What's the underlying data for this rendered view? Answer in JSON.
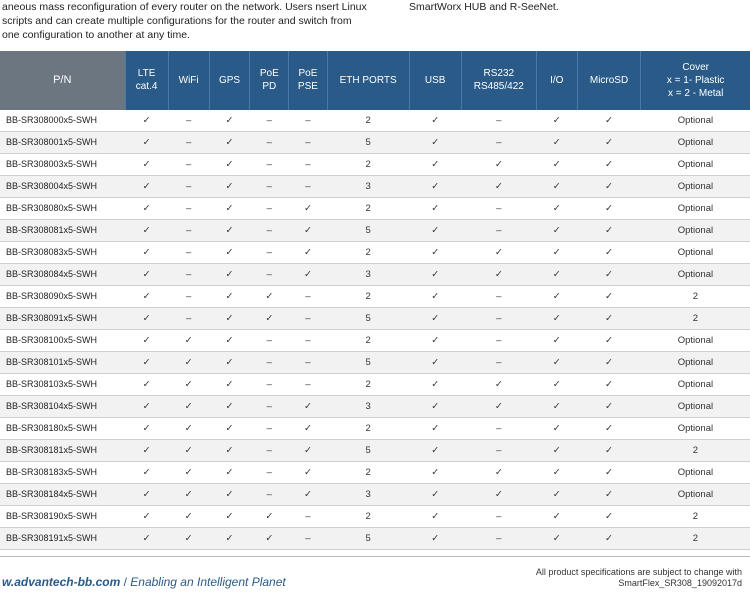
{
  "intro": {
    "left": "aneous mass reconfiguration of every router on the network. Users nsert Linux scripts and can create multiple configurations for the router and switch from one configuration to another at any time.",
    "right": "SmartWorx HUB and R-SeeNet."
  },
  "symbols": {
    "check": "✓",
    "dash": "–"
  },
  "columns": [
    {
      "key": "pn",
      "label": "P/N",
      "cls": "pn"
    },
    {
      "key": "lte",
      "label": "LTE\ncat.4",
      "cls": "col-lte"
    },
    {
      "key": "wifi",
      "label": "WiFi",
      "cls": "col-wifi"
    },
    {
      "key": "gps",
      "label": "GPS",
      "cls": "col-gps"
    },
    {
      "key": "pd",
      "label": "PoE\nPD",
      "cls": "col-pd"
    },
    {
      "key": "pse",
      "label": "PoE\nPSE",
      "cls": "col-pse"
    },
    {
      "key": "eth",
      "label": "ETH PORTS",
      "cls": "col-eth"
    },
    {
      "key": "usb",
      "label": "USB",
      "cls": "col-usb"
    },
    {
      "key": "rs",
      "label": "RS232\nRS485/422",
      "cls": "col-rs"
    },
    {
      "key": "io",
      "label": "I/O",
      "cls": "col-io"
    },
    {
      "key": "sd",
      "label": "MicroSD",
      "cls": "col-sd"
    },
    {
      "key": "cov",
      "label": "Cover\nx = 1- Plastic\nx = 2 - Metal",
      "cls": "col-cov"
    }
  ],
  "rows": [
    {
      "pn": "BB-SR308000x5-SWH",
      "lte": "c",
      "wifi": "d",
      "gps": "c",
      "pd": "d",
      "pse": "d",
      "eth": "2",
      "usb": "c",
      "rs": "d",
      "io": "c",
      "sd": "c",
      "cov": "Optional"
    },
    {
      "pn": "BB-SR308001x5-SWH",
      "lte": "c",
      "wifi": "d",
      "gps": "c",
      "pd": "d",
      "pse": "d",
      "eth": "5",
      "usb": "c",
      "rs": "d",
      "io": "c",
      "sd": "c",
      "cov": "Optional"
    },
    {
      "pn": "BB-SR308003x5-SWH",
      "lte": "c",
      "wifi": "d",
      "gps": "c",
      "pd": "d",
      "pse": "d",
      "eth": "2",
      "usb": "c",
      "rs": "c",
      "io": "c",
      "sd": "c",
      "cov": "Optional"
    },
    {
      "pn": "BB-SR308004x5-SWH",
      "lte": "c",
      "wifi": "d",
      "gps": "c",
      "pd": "d",
      "pse": "d",
      "eth": "3",
      "usb": "c",
      "rs": "c",
      "io": "c",
      "sd": "c",
      "cov": "Optional"
    },
    {
      "pn": "BB-SR308080x5-SWH",
      "lte": "c",
      "wifi": "d",
      "gps": "c",
      "pd": "d",
      "pse": "c",
      "eth": "2",
      "usb": "c",
      "rs": "d",
      "io": "c",
      "sd": "c",
      "cov": "Optional"
    },
    {
      "pn": "BB-SR308081x5-SWH",
      "lte": "c",
      "wifi": "d",
      "gps": "c",
      "pd": "d",
      "pse": "c",
      "eth": "5",
      "usb": "c",
      "rs": "d",
      "io": "c",
      "sd": "c",
      "cov": "Optional"
    },
    {
      "pn": "BB-SR308083x5-SWH",
      "lte": "c",
      "wifi": "d",
      "gps": "c",
      "pd": "d",
      "pse": "c",
      "eth": "2",
      "usb": "c",
      "rs": "c",
      "io": "c",
      "sd": "c",
      "cov": "Optional"
    },
    {
      "pn": "BB-SR308084x5-SWH",
      "lte": "c",
      "wifi": "d",
      "gps": "c",
      "pd": "d",
      "pse": "c",
      "eth": "3",
      "usb": "c",
      "rs": "c",
      "io": "c",
      "sd": "c",
      "cov": "Optional"
    },
    {
      "pn": "BB-SR308090x5-SWH",
      "lte": "c",
      "wifi": "d",
      "gps": "c",
      "pd": "c",
      "pse": "d",
      "eth": "2",
      "usb": "c",
      "rs": "d",
      "io": "c",
      "sd": "c",
      "cov": "2"
    },
    {
      "pn": "BB-SR308091x5-SWH",
      "lte": "c",
      "wifi": "d",
      "gps": "c",
      "pd": "c",
      "pse": "d",
      "eth": "5",
      "usb": "c",
      "rs": "d",
      "io": "c",
      "sd": "c",
      "cov": "2"
    },
    {
      "pn": "BB-SR308100x5-SWH",
      "lte": "c",
      "wifi": "c",
      "gps": "c",
      "pd": "d",
      "pse": "d",
      "eth": "2",
      "usb": "c",
      "rs": "d",
      "io": "c",
      "sd": "c",
      "cov": "Optional"
    },
    {
      "pn": "BB-SR308101x5-SWH",
      "lte": "c",
      "wifi": "c",
      "gps": "c",
      "pd": "d",
      "pse": "d",
      "eth": "5",
      "usb": "c",
      "rs": "d",
      "io": "c",
      "sd": "c",
      "cov": "Optional"
    },
    {
      "pn": "BB-SR308103x5-SWH",
      "lte": "c",
      "wifi": "c",
      "gps": "c",
      "pd": "d",
      "pse": "d",
      "eth": "2",
      "usb": "c",
      "rs": "c",
      "io": "c",
      "sd": "c",
      "cov": "Optional"
    },
    {
      "pn": "BB-SR308104x5-SWH",
      "lte": "c",
      "wifi": "c",
      "gps": "c",
      "pd": "d",
      "pse": "c",
      "eth": "3",
      "usb": "c",
      "rs": "c",
      "io": "c",
      "sd": "c",
      "cov": "Optional"
    },
    {
      "pn": "BB-SR308180x5-SWH",
      "lte": "c",
      "wifi": "c",
      "gps": "c",
      "pd": "d",
      "pse": "c",
      "eth": "2",
      "usb": "c",
      "rs": "d",
      "io": "c",
      "sd": "c",
      "cov": "Optional"
    },
    {
      "pn": "BB-SR308181x5-SWH",
      "lte": "c",
      "wifi": "c",
      "gps": "c",
      "pd": "d",
      "pse": "c",
      "eth": "5",
      "usb": "c",
      "rs": "d",
      "io": "c",
      "sd": "c",
      "cov": "2"
    },
    {
      "pn": "BB-SR308183x5-SWH",
      "lte": "c",
      "wifi": "c",
      "gps": "c",
      "pd": "d",
      "pse": "c",
      "eth": "2",
      "usb": "c",
      "rs": "c",
      "io": "c",
      "sd": "c",
      "cov": "Optional"
    },
    {
      "pn": "BB-SR308184x5-SWH",
      "lte": "c",
      "wifi": "c",
      "gps": "c",
      "pd": "d",
      "pse": "c",
      "eth": "3",
      "usb": "c",
      "rs": "c",
      "io": "c",
      "sd": "c",
      "cov": "Optional"
    },
    {
      "pn": "BB-SR308190x5-SWH",
      "lte": "c",
      "wifi": "c",
      "gps": "c",
      "pd": "c",
      "pse": "d",
      "eth": "2",
      "usb": "c",
      "rs": "d",
      "io": "c",
      "sd": "c",
      "cov": "2"
    },
    {
      "pn": "BB-SR308191x5-SWH",
      "lte": "c",
      "wifi": "c",
      "gps": "c",
      "pd": "c",
      "pse": "d",
      "eth": "5",
      "usb": "c",
      "rs": "d",
      "io": "c",
      "sd": "c",
      "cov": "2"
    }
  ],
  "footer": {
    "url": "w.advantech-bb.com",
    "sep": "  /  ",
    "tagline": "Enabling an Intelligent Planet",
    "note1": "All product specifications are subject to change with",
    "note2": "SmartFlex_SR308_19092017d"
  }
}
